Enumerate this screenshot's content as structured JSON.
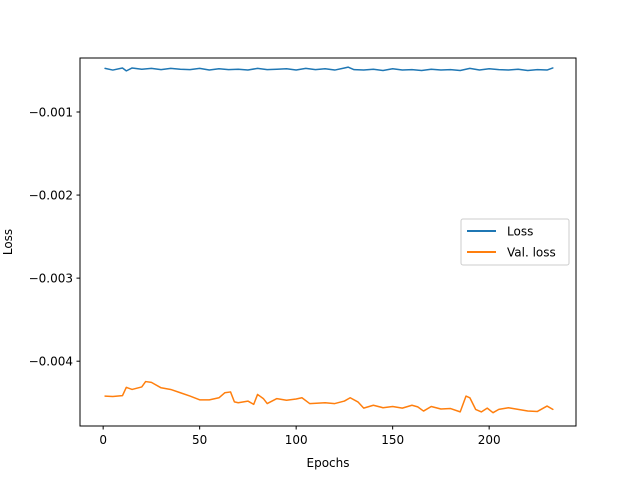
{
  "chart_data": {
    "type": "line",
    "xlabel": "Epochs",
    "ylabel": "Loss",
    "xlim": [
      -12,
      245
    ],
    "ylim": [
      -0.00478,
      -0.00035
    ],
    "xticks": [
      0,
      50,
      100,
      150,
      200
    ],
    "yticks": [
      -0.001,
      -0.002,
      -0.003,
      -0.004
    ],
    "ytick_labels": [
      "−0.001",
      "−0.002",
      "−0.003",
      "−0.004"
    ],
    "grid": false,
    "legend_position": "center-right",
    "series": [
      {
        "name": "Loss",
        "color": "#1f77b4",
        "x": [
          1,
          5,
          10,
          12,
          15,
          20,
          25,
          30,
          35,
          40,
          45,
          50,
          55,
          60,
          65,
          70,
          75,
          80,
          85,
          90,
          95,
          100,
          105,
          110,
          115,
          120,
          125,
          127,
          130,
          135,
          140,
          145,
          150,
          155,
          160,
          165,
          170,
          175,
          180,
          185,
          190,
          195,
          200,
          205,
          210,
          215,
          220,
          225,
          230,
          233
        ],
        "y": [
          -0.000475,
          -0.000495,
          -0.00047,
          -0.000505,
          -0.00047,
          -0.000485,
          -0.000475,
          -0.00049,
          -0.000475,
          -0.000485,
          -0.00049,
          -0.000475,
          -0.000495,
          -0.00048,
          -0.00049,
          -0.000485,
          -0.000495,
          -0.000475,
          -0.00049,
          -0.000485,
          -0.00048,
          -0.000495,
          -0.000475,
          -0.00049,
          -0.00048,
          -0.000495,
          -0.00047,
          -0.00046,
          -0.00049,
          -0.000495,
          -0.000485,
          -0.0005,
          -0.00048,
          -0.000495,
          -0.00049,
          -0.0005,
          -0.000485,
          -0.000495,
          -0.00049,
          -0.0005,
          -0.000475,
          -0.000495,
          -0.00048,
          -0.00049,
          -0.000495,
          -0.000485,
          -0.0005,
          -0.00049,
          -0.000495,
          -0.00047
        ]
      },
      {
        "name": "Val. loss",
        "color": "#ff7f0e",
        "x": [
          1,
          5,
          10,
          12,
          15,
          20,
          22,
          25,
          30,
          35,
          40,
          45,
          50,
          55,
          60,
          63,
          66,
          68,
          70,
          75,
          78,
          80,
          83,
          85,
          90,
          95,
          100,
          103,
          107,
          115,
          120,
          125,
          128,
          132,
          135,
          140,
          145,
          150,
          155,
          160,
          163,
          166,
          170,
          175,
          180,
          185,
          188,
          190,
          193,
          196,
          199,
          202,
          205,
          210,
          215,
          220,
          225,
          230,
          233
        ],
        "y": [
          -0.00442,
          -0.004425,
          -0.004415,
          -0.004315,
          -0.00434,
          -0.00431,
          -0.004245,
          -0.004255,
          -0.00432,
          -0.00434,
          -0.00438,
          -0.00442,
          -0.004465,
          -0.004465,
          -0.00444,
          -0.00438,
          -0.00437,
          -0.00449,
          -0.0045,
          -0.00448,
          -0.00452,
          -0.0044,
          -0.00445,
          -0.00451,
          -0.00445,
          -0.00447,
          -0.004455,
          -0.00444,
          -0.00451,
          -0.0045,
          -0.00451,
          -0.00448,
          -0.00444,
          -0.00449,
          -0.004565,
          -0.00453,
          -0.00456,
          -0.004545,
          -0.004565,
          -0.00453,
          -0.00455,
          -0.0046,
          -0.004545,
          -0.004575,
          -0.00457,
          -0.00461,
          -0.00442,
          -0.00444,
          -0.00458,
          -0.00461,
          -0.004565,
          -0.00462,
          -0.00458,
          -0.00456,
          -0.00458,
          -0.0046,
          -0.004605,
          -0.00454,
          -0.00458
        ]
      }
    ]
  }
}
